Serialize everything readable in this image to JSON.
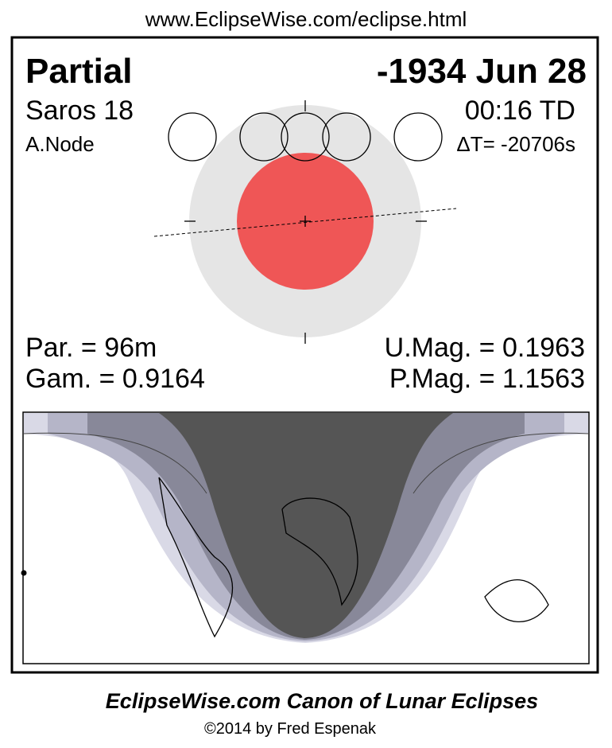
{
  "header": {
    "url": "www.EclipseWise.com/eclipse.html"
  },
  "panel": {
    "type": "Partial",
    "date": "-1934 Jun 28",
    "saros": "Saros  18",
    "time": "00:16 TD",
    "node": "A.Node",
    "delta_t": "ΔT= -20706s",
    "par": "Par. =  96m",
    "umag": "U.Mag. = 0.1963",
    "gam": "Gam. = 0.9164",
    "pmag": "P.Mag. = 1.1563"
  },
  "footer": {
    "title": "EclipseWise.com Canon of Lunar Eclipses",
    "copyright": "©2014 by Fred Espenak"
  }
}
